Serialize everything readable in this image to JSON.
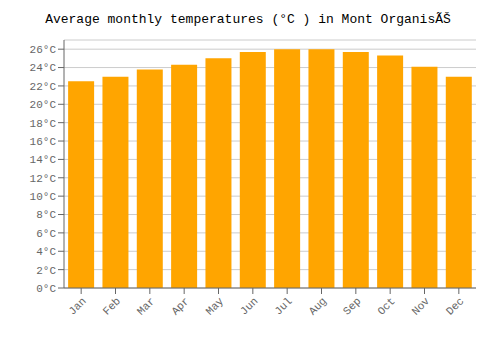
{
  "chart_data": {
    "type": "bar",
    "title": "Average monthly temperatures (°C ) in Mont OrganisÃŠ",
    "categories": [
      "Jan",
      "Feb",
      "Mar",
      "Apr",
      "May",
      "Jun",
      "Jul",
      "Aug",
      "Sep",
      "Oct",
      "Nov",
      "Dec"
    ],
    "values": [
      22.5,
      23.0,
      23.8,
      24.3,
      25.0,
      25.7,
      26.0,
      26.0,
      25.7,
      25.3,
      24.1,
      23.0
    ],
    "color": "#FFA500",
    "ylim": [
      0,
      27
    ],
    "yticks": [
      {
        "value": 0,
        "label": "0°C"
      },
      {
        "value": 2,
        "label": "2°C"
      },
      {
        "value": 4,
        "label": "4°C"
      },
      {
        "value": 6,
        "label": "6°C"
      },
      {
        "value": 8,
        "label": "8°C"
      },
      {
        "value": 10,
        "label": "10°C"
      },
      {
        "value": 12,
        "label": "12°C"
      },
      {
        "value": 14,
        "label": "14°C"
      },
      {
        "value": 16,
        "label": "16°C"
      },
      {
        "value": 18,
        "label": "18°C"
      },
      {
        "value": 20,
        "label": "20°C"
      },
      {
        "value": 22,
        "label": "22°C"
      },
      {
        "value": 24,
        "label": "24°C"
      },
      {
        "value": 26,
        "label": "26°C"
      }
    ],
    "grid": true
  }
}
